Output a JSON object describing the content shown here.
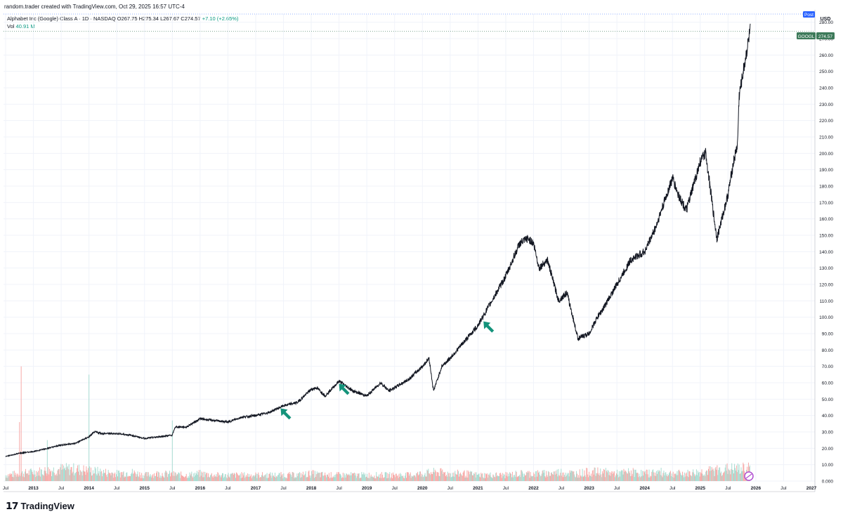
{
  "header": {
    "credit": "random.trader created with TradingView.com, Oct 29, 2025 16:57 UTC-4"
  },
  "legend": {
    "symbol": "Alphabet Inc (Google) Class A · 1D · NASDAQ",
    "open": "O267.75",
    "high": "H275.34",
    "low": "L267.67",
    "close": "C274.57",
    "change": "+7.10 (+2.65%)",
    "vol_label": "Vol",
    "vol_value": "40.91 M"
  },
  "badges": {
    "post": "Post",
    "currency": "USD",
    "ticker": "GOOGL",
    "last_price": "274.57"
  },
  "brand": {
    "name": "TradingView"
  },
  "colors": {
    "up": "#089981",
    "down": "#f23645",
    "price_line": "#131722",
    "badge": "#3d7a5a"
  },
  "chart_data": {
    "type": "line",
    "ylabel": "USD",
    "ylim": [
      0,
      285
    ],
    "y_ticks": [
      0,
      10,
      20,
      30,
      40,
      50,
      60,
      70,
      80,
      90,
      100,
      110,
      120,
      130,
      140,
      150,
      160,
      170,
      180,
      190,
      200,
      210,
      220,
      230,
      240,
      250,
      260,
      270,
      280
    ],
    "y_tick_labels": [
      "0.000",
      "10.00",
      "20.00",
      "30.00",
      "40.00",
      "50.00",
      "60.00",
      "70.00",
      "80.00",
      "90.00",
      "100.00",
      "110.00",
      "120.00",
      "130.00",
      "140.00",
      "150.00",
      "160.00",
      "170.00",
      "180.00",
      "190.00",
      "200.00",
      "210.00",
      "220.00",
      "230.00",
      "240.00",
      "250.00",
      "260.00",
      "270.00",
      "280.00"
    ],
    "x_ticks": [
      {
        "label": "Jul",
        "t": 2012.5
      },
      {
        "label": "2013",
        "t": 2013.0
      },
      {
        "label": "Jul",
        "t": 2013.5
      },
      {
        "label": "2014",
        "t": 2014.0
      },
      {
        "label": "Jul",
        "t": 2014.5
      },
      {
        "label": "2015",
        "t": 2015.0
      },
      {
        "label": "Jul",
        "t": 2015.5
      },
      {
        "label": "2016",
        "t": 2016.0
      },
      {
        "label": "Jul",
        "t": 2016.5
      },
      {
        "label": "2017",
        "t": 2017.0
      },
      {
        "label": "Jul",
        "t": 2017.5
      },
      {
        "label": "2018",
        "t": 2018.0
      },
      {
        "label": "Jul",
        "t": 2018.5
      },
      {
        "label": "2019",
        "t": 2019.0
      },
      {
        "label": "Jul",
        "t": 2019.5
      },
      {
        "label": "2020",
        "t": 2020.0
      },
      {
        "label": "Jul",
        "t": 2020.5
      },
      {
        "label": "2021",
        "t": 2021.0
      },
      {
        "label": "Jul",
        "t": 2021.5
      },
      {
        "label": "2022",
        "t": 2022.0
      },
      {
        "label": "Jul",
        "t": 2022.5
      },
      {
        "label": "2023",
        "t": 2023.0
      },
      {
        "label": "Jul",
        "t": 2023.5
      },
      {
        "label": "2024",
        "t": 2024.0
      },
      {
        "label": "Jul",
        "t": 2024.5
      },
      {
        "label": "2025",
        "t": 2025.0
      },
      {
        "label": "Jul",
        "t": 2025.5
      },
      {
        "label": "2026",
        "t": 2026.0
      },
      {
        "label": "Jul",
        "t": 2026.5
      },
      {
        "label": "2027",
        "t": 2027.0
      }
    ],
    "series": [
      {
        "values": [
          [
            2012.5,
            15
          ],
          [
            2012.75,
            17
          ],
          [
            2013.0,
            18
          ],
          [
            2013.25,
            20
          ],
          [
            2013.5,
            22
          ],
          [
            2013.75,
            23
          ],
          [
            2014.0,
            27
          ],
          [
            2014.1,
            30
          ],
          [
            2014.25,
            29
          ],
          [
            2014.5,
            29
          ],
          [
            2014.75,
            28
          ],
          [
            2015.0,
            26
          ],
          [
            2015.25,
            27
          ],
          [
            2015.5,
            28
          ],
          [
            2015.55,
            33
          ],
          [
            2015.75,
            33
          ],
          [
            2016.0,
            38
          ],
          [
            2016.25,
            37
          ],
          [
            2016.5,
            36
          ],
          [
            2016.75,
            39
          ],
          [
            2017.0,
            40
          ],
          [
            2017.25,
            42
          ],
          [
            2017.5,
            46
          ],
          [
            2017.75,
            48
          ],
          [
            2018.0,
            56
          ],
          [
            2018.1,
            57
          ],
          [
            2018.25,
            52
          ],
          [
            2018.5,
            61
          ],
          [
            2018.75,
            55
          ],
          [
            2019.0,
            52
          ],
          [
            2019.25,
            60
          ],
          [
            2019.4,
            55
          ],
          [
            2019.5,
            57
          ],
          [
            2019.75,
            62
          ],
          [
            2020.0,
            70
          ],
          [
            2020.12,
            75
          ],
          [
            2020.2,
            55
          ],
          [
            2020.35,
            70
          ],
          [
            2020.5,
            75
          ],
          [
            2020.75,
            85
          ],
          [
            2021.0,
            95
          ],
          [
            2021.25,
            110
          ],
          [
            2021.5,
            125
          ],
          [
            2021.75,
            145
          ],
          [
            2021.9,
            148
          ],
          [
            2022.0,
            145
          ],
          [
            2022.1,
            130
          ],
          [
            2022.25,
            135
          ],
          [
            2022.45,
            110
          ],
          [
            2022.6,
            115
          ],
          [
            2022.8,
            87
          ],
          [
            2023.0,
            90
          ],
          [
            2023.15,
            100
          ],
          [
            2023.25,
            105
          ],
          [
            2023.5,
            120
          ],
          [
            2023.75,
            135
          ],
          [
            2024.0,
            140
          ],
          [
            2024.2,
            155
          ],
          [
            2024.5,
            185
          ],
          [
            2024.6,
            175
          ],
          [
            2024.75,
            165
          ],
          [
            2025.0,
            195
          ],
          [
            2025.1,
            200
          ],
          [
            2025.25,
            160
          ],
          [
            2025.3,
            148
          ],
          [
            2025.5,
            175
          ],
          [
            2025.6,
            195
          ],
          [
            2025.67,
            205
          ],
          [
            2025.7,
            235
          ],
          [
            2025.8,
            255
          ],
          [
            2025.9,
            275
          ]
        ]
      }
    ],
    "volume": {
      "label": "Vol",
      "values": [
        [
          2012.5,
          4
        ],
        [
          2012.75,
          36
        ],
        [
          2012.78,
          70
        ],
        [
          2013.0,
          6
        ],
        [
          2013.25,
          25
        ],
        [
          2013.5,
          8
        ],
        [
          2013.75,
          8
        ],
        [
          2014.0,
          65
        ],
        [
          2014.25,
          6
        ],
        [
          2014.5,
          5
        ],
        [
          2014.75,
          6
        ],
        [
          2015.0,
          4
        ],
        [
          2015.25,
          5
        ],
        [
          2015.5,
          37
        ],
        [
          2015.75,
          4
        ],
        [
          2016.0,
          5
        ],
        [
          2016.25,
          4
        ],
        [
          2016.5,
          4
        ],
        [
          2016.75,
          4
        ],
        [
          2017.0,
          4
        ],
        [
          2017.25,
          4
        ],
        [
          2017.5,
          4
        ],
        [
          2017.75,
          4
        ],
        [
          2018.0,
          5
        ],
        [
          2018.25,
          4
        ],
        [
          2018.5,
          4
        ],
        [
          2018.75,
          4
        ],
        [
          2019.0,
          4
        ],
        [
          2019.25,
          4
        ],
        [
          2019.5,
          4
        ],
        [
          2019.75,
          4
        ],
        [
          2020.0,
          5
        ],
        [
          2020.25,
          6
        ],
        [
          2020.5,
          5
        ],
        [
          2020.75,
          5
        ],
        [
          2021.0,
          4
        ],
        [
          2021.25,
          4
        ],
        [
          2021.5,
          4
        ],
        [
          2021.75,
          5
        ],
        [
          2022.0,
          5
        ],
        [
          2022.25,
          5
        ],
        [
          2022.5,
          6
        ],
        [
          2022.75,
          5
        ],
        [
          2023.0,
          6
        ],
        [
          2023.25,
          6
        ],
        [
          2023.5,
          5
        ],
        [
          2023.75,
          6
        ],
        [
          2024.0,
          5
        ],
        [
          2024.25,
          6
        ],
        [
          2024.5,
          5
        ],
        [
          2024.75,
          5
        ],
        [
          2025.0,
          6
        ],
        [
          2025.25,
          7
        ],
        [
          2025.5,
          8
        ],
        [
          2025.75,
          8
        ],
        [
          2025.9,
          9
        ]
      ]
    },
    "markers": [
      {
        "type": "arrow",
        "direction": "up-left",
        "t": 2017.55,
        "y": 41
      },
      {
        "type": "arrow",
        "direction": "up-left",
        "t": 2018.6,
        "y": 56
      },
      {
        "type": "arrow",
        "direction": "up-left",
        "t": 2021.2,
        "y": 94
      }
    ],
    "last_price": 274.57,
    "grid": true,
    "legend_position": "top-left"
  }
}
